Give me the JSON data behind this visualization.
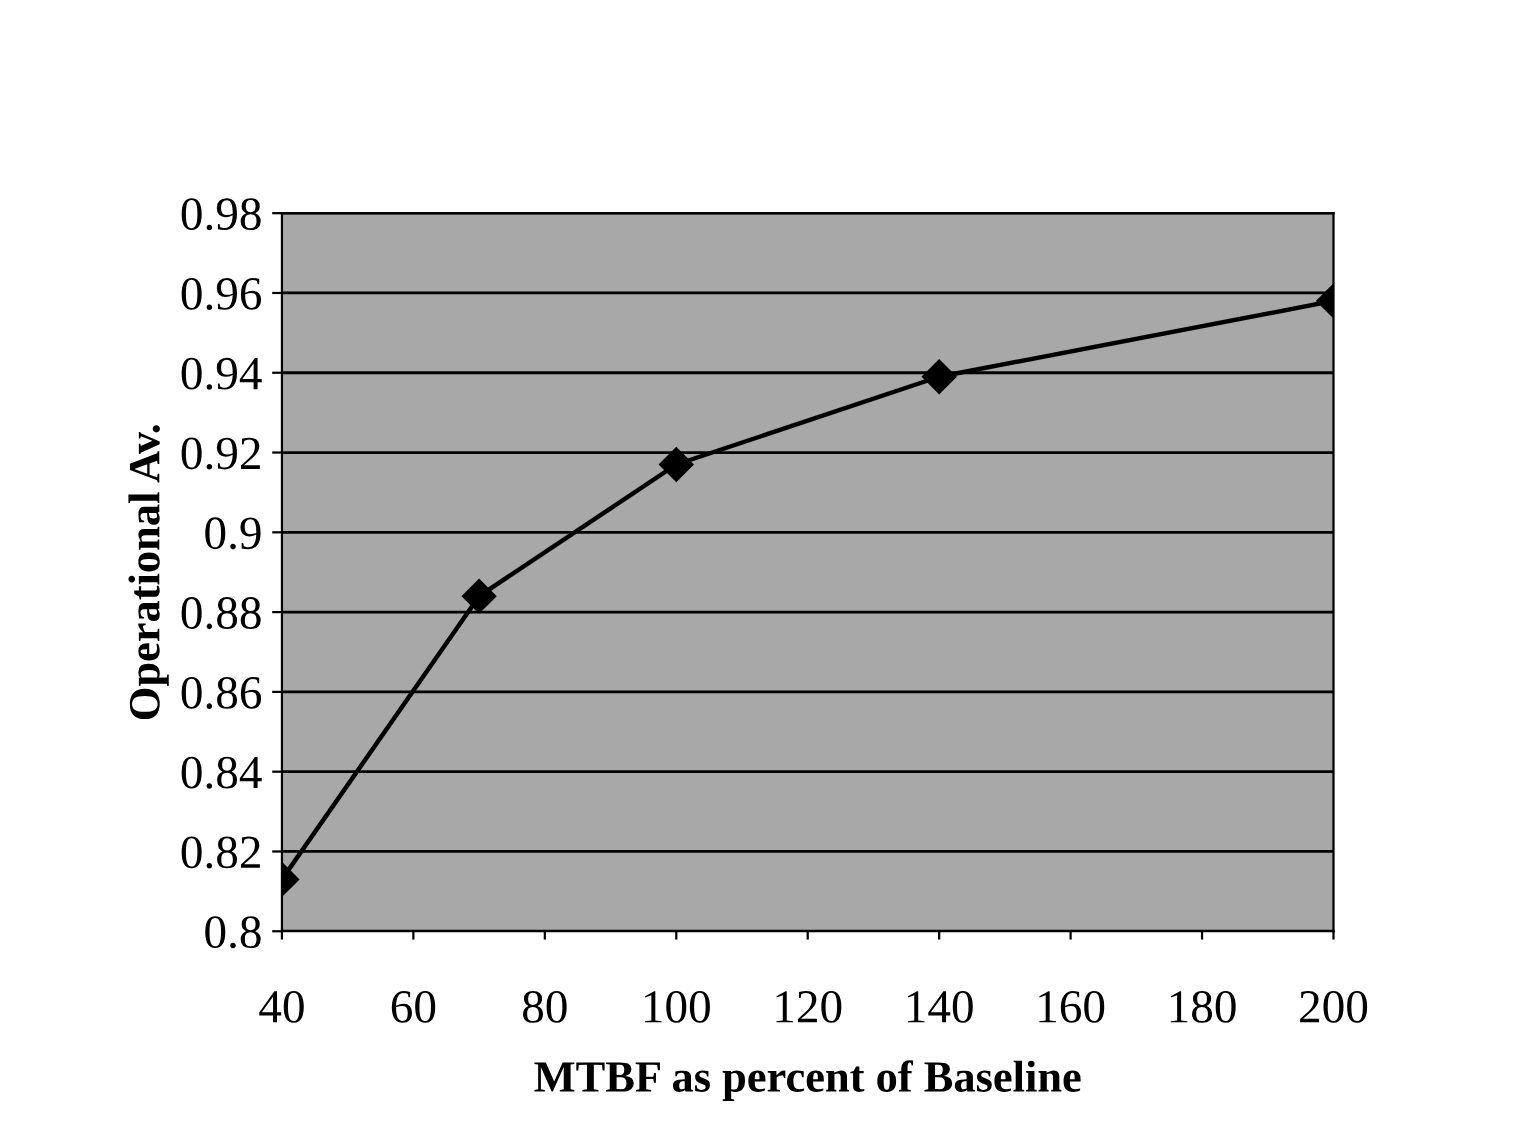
{
  "chart_data": {
    "type": "line",
    "xlabel": "MTBF as percent of Baseline",
    "ylabel": "Operational Av.",
    "x": [
      40,
      70,
      100,
      140,
      200
    ],
    "series": [
      {
        "color": "#000000",
        "values": [
          0.813,
          0.884,
          0.917,
          0.939,
          0.958
        ]
      }
    ],
    "xlim": [
      40,
      200
    ],
    "xticks": [
      40,
      60,
      80,
      100,
      120,
      140,
      160,
      180,
      200
    ],
    "ylim": [
      0.8,
      0.98
    ],
    "yticks": [
      0.8,
      0.82,
      0.84,
      0.86,
      0.88,
      0.9,
      0.92,
      0.94,
      0.96,
      0.98
    ],
    "grid": "y",
    "marker": "diamond",
    "line_style": "solid",
    "legend": false
  }
}
